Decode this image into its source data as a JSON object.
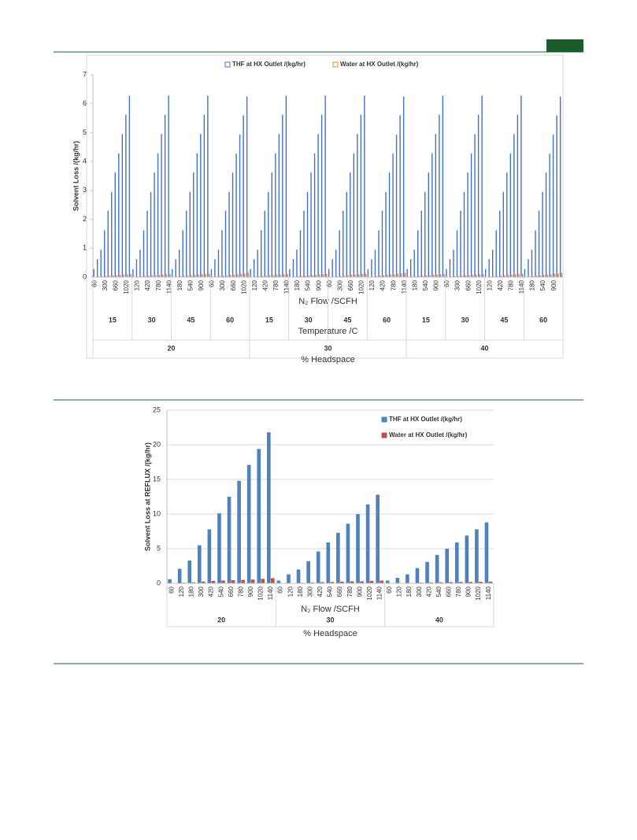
{
  "chart_data": [
    {
      "type": "bar",
      "y_label": "Solvent Loss /(kg/hr)",
      "x_label": "N₂ Flow /SCFH",
      "categories": [
        "60",
        null,
        null,
        "300",
        null,
        null,
        "660",
        null,
        null,
        "1020",
        null,
        null,
        "120",
        null,
        null,
        "420",
        null,
        null,
        "780",
        null,
        null,
        "1140",
        null,
        null,
        "180",
        null,
        null,
        "540",
        null,
        null,
        "900",
        null,
        null,
        "60",
        null,
        null,
        "300",
        null,
        null,
        "660",
        null,
        null,
        "1020",
        null,
        null,
        "120",
        null,
        null,
        "420",
        null,
        null,
        "780",
        null,
        null,
        "1140",
        null,
        null,
        "180",
        null,
        null,
        "540",
        null,
        null,
        "900",
        null,
        null,
        "60",
        null,
        null,
        "300",
        null,
        null,
        "660",
        null,
        null,
        "1020",
        null,
        null,
        "120",
        null,
        null,
        "420",
        null,
        null,
        "780",
        null,
        null,
        "1140",
        null,
        null,
        "180",
        null,
        null,
        "540",
        null,
        null,
        "900",
        null,
        null,
        "60",
        null,
        null,
        "300",
        null,
        null,
        "660",
        null,
        null,
        "1020",
        null,
        null,
        "120",
        null,
        null,
        "420",
        null,
        null,
        "780",
        null,
        null,
        "1140",
        null,
        null,
        "180",
        null,
        null,
        "540",
        null,
        null,
        "900",
        null,
        null
      ],
      "groups": [
        {
          "title": "Temperature /C",
          "labels": [
            "15",
            "30",
            "45",
            "60",
            "15",
            "30",
            "45",
            "60",
            "15",
            "30",
            "45",
            "60"
          ]
        },
        {
          "title": "% Headspace",
          "labels": [
            "20",
            "30",
            "40"
          ]
        }
      ],
      "series": [
        {
          "name": "THF at HX Outlet /(kg/hr)",
          "color": "#4472c4",
          "values": [
            0.28,
            0.62,
            0.95,
            1.62,
            2.3,
            2.95,
            3.62,
            4.28,
            4.95,
            5.62,
            6.28,
            0.28,
            0.62,
            0.95,
            1.62,
            2.3,
            2.95,
            3.62,
            4.28,
            4.95,
            5.62,
            6.28,
            0.28,
            0.62,
            0.95,
            1.62,
            2.3,
            2.95,
            3.62,
            4.28,
            4.95,
            5.62,
            6.28,
            0.28,
            0.62,
            0.95,
            1.62,
            2.3,
            2.95,
            3.62,
            4.27,
            4.93,
            5.6,
            6.25,
            0.28,
            0.62,
            0.95,
            1.62,
            2.3,
            2.95,
            3.62,
            4.28,
            4.95,
            5.62,
            6.28,
            0.28,
            0.62,
            0.95,
            1.62,
            2.3,
            2.95,
            3.62,
            4.28,
            4.95,
            5.62,
            6.28,
            0.28,
            0.62,
            0.95,
            1.62,
            2.3,
            2.95,
            3.62,
            4.28,
            4.95,
            5.62,
            6.28,
            0.28,
            0.62,
            0.95,
            1.62,
            2.3,
            2.95,
            3.62,
            4.27,
            4.93,
            5.6,
            6.25,
            0.28,
            0.62,
            0.95,
            1.62,
            2.3,
            2.95,
            3.62,
            4.28,
            4.95,
            5.62,
            6.28,
            0.28,
            0.62,
            0.95,
            1.62,
            2.3,
            2.95,
            3.62,
            4.28,
            4.95,
            5.62,
            6.28,
            0.28,
            0.62,
            0.95,
            1.62,
            2.3,
            2.95,
            3.62,
            4.28,
            4.95,
            5.62,
            6.28,
            0.28,
            0.62,
            0.95,
            1.62,
            2.3,
            2.95,
            3.62,
            4.27,
            4.93,
            5.6,
            6.25
          ]
        },
        {
          "name": "Water at HX Outlet /(kg/hr)",
          "color": "#ed7d31",
          "values": [
            0.01,
            0.02,
            0.03,
            0.04,
            0.05,
            0.06,
            0.07,
            0.08,
            0.09,
            0.1,
            0.11,
            0.01,
            0.02,
            0.03,
            0.04,
            0.05,
            0.06,
            0.07,
            0.08,
            0.09,
            0.1,
            0.11,
            0.01,
            0.02,
            0.03,
            0.04,
            0.05,
            0.07,
            0.08,
            0.09,
            0.1,
            0.11,
            0.12,
            0.01,
            0.02,
            0.04,
            0.05,
            0.06,
            0.08,
            0.09,
            0.1,
            0.12,
            0.13,
            0.15,
            0.01,
            0.02,
            0.03,
            0.04,
            0.05,
            0.06,
            0.07,
            0.08,
            0.09,
            0.1,
            0.11,
            0.01,
            0.02,
            0.03,
            0.04,
            0.05,
            0.06,
            0.07,
            0.08,
            0.09,
            0.1,
            0.11,
            0.01,
            0.02,
            0.03,
            0.04,
            0.05,
            0.07,
            0.08,
            0.09,
            0.1,
            0.11,
            0.12,
            0.01,
            0.02,
            0.04,
            0.05,
            0.06,
            0.08,
            0.09,
            0.1,
            0.12,
            0.13,
            0.15,
            0.01,
            0.02,
            0.03,
            0.04,
            0.05,
            0.06,
            0.07,
            0.08,
            0.09,
            0.1,
            0.11,
            0.01,
            0.02,
            0.03,
            0.04,
            0.05,
            0.06,
            0.07,
            0.08,
            0.09,
            0.1,
            0.11,
            0.01,
            0.02,
            0.03,
            0.04,
            0.05,
            0.07,
            0.08,
            0.09,
            0.1,
            0.11,
            0.12,
            0.01,
            0.02,
            0.04,
            0.05,
            0.06,
            0.08,
            0.09,
            0.1,
            0.12,
            0.13,
            0.15
          ]
        }
      ],
      "ylim": [
        0,
        7
      ],
      "yticks": [
        0,
        1,
        2,
        3,
        4,
        5,
        6,
        7
      ],
      "grid": false,
      "legend": "top"
    },
    {
      "type": "bar",
      "y_label": "Solvent Loss at REFLUX /(kg/hr)",
      "x_label": "N₂ Flow /SCFH",
      "categories": [
        "60",
        "120",
        "180",
        "300",
        "420",
        "540",
        "660",
        "780",
        "900",
        "1020",
        "1140",
        "60",
        "120",
        "180",
        "300",
        "420",
        "540",
        "660",
        "780",
        "900",
        "1020",
        "1140",
        "60",
        "120",
        "180",
        "300",
        "420",
        "540",
        "660",
        "780",
        "900",
        "1020",
        "1140"
      ],
      "groups": [
        {
          "title": "% Headspace",
          "labels": [
            "20",
            "30",
            "40"
          ]
        }
      ],
      "series": [
        {
          "name": "THF at HX Outlet /(kg/hr)",
          "color": "#4f81bd",
          "values": [
            0.6,
            2.1,
            3.3,
            5.5,
            7.8,
            10.1,
            12.5,
            14.8,
            17.1,
            19.4,
            21.8,
            0.4,
            1.3,
            2.0,
            3.2,
            4.6,
            5.9,
            7.3,
            8.6,
            10.0,
            11.4,
            12.8,
            0.4,
            0.8,
            1.3,
            2.2,
            3.1,
            4.1,
            5.0,
            5.9,
            6.9,
            7.8,
            8.8
          ]
        },
        {
          "name": "Water at HX Outlet /(kg/hr)",
          "color": "#c0504d",
          "values": [
            0.03,
            0.1,
            0.15,
            0.25,
            0.35,
            0.4,
            0.45,
            0.5,
            0.55,
            0.65,
            0.75,
            0.02,
            0.05,
            0.08,
            0.12,
            0.18,
            0.2,
            0.25,
            0.3,
            0.3,
            0.35,
            0.4,
            0.02,
            0.04,
            0.06,
            0.1,
            0.12,
            0.15,
            0.18,
            0.2,
            0.2,
            0.22,
            0.25
          ]
        }
      ],
      "ylim": [
        0,
        25
      ],
      "yticks": [
        0,
        5,
        10,
        15,
        20,
        25
      ],
      "grid": true,
      "legend": "top-right"
    }
  ]
}
